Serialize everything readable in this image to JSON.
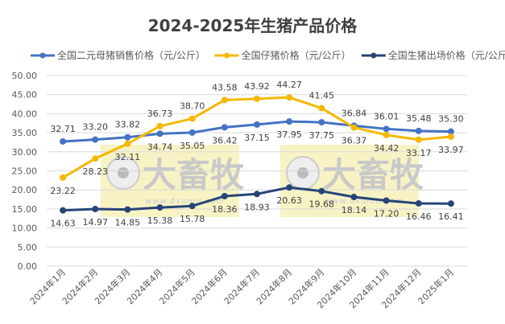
{
  "chart_data": {
    "type": "line",
    "title": "2024-2025年生猪产品价格",
    "xlabel": "",
    "ylabel": "",
    "categories": [
      "2024年1月",
      "2024年2月",
      "2024年3月",
      "2024年4月",
      "2024年5月",
      "2024年6月",
      "2024年7月",
      "2024年8月",
      "2024年9月",
      "2024年10月",
      "2024年11月",
      "2024年12月",
      "2025年1月"
    ],
    "ylim": [
      0,
      50
    ],
    "yticks": [
      "0.00",
      "5.00",
      "10.00",
      "15.00",
      "20.00",
      "25.00",
      "30.00",
      "35.00",
      "40.00",
      "45.00",
      "50.00"
    ],
    "grid": true,
    "legend_position": "top",
    "series": [
      {
        "name": "全国二元母猪销售价格（元/公斤）",
        "color": "#4472C4",
        "values": [
          32.71,
          33.2,
          33.82,
          34.74,
          35.05,
          36.42,
          37.15,
          37.95,
          37.75,
          36.84,
          36.01,
          35.48,
          35.3
        ]
      },
      {
        "name": "全国仔猪价格（元/公斤）",
        "color": "#F5B800",
        "values": [
          23.22,
          28.23,
          32.11,
          36.73,
          38.7,
          43.58,
          43.92,
          44.27,
          41.45,
          36.37,
          34.42,
          33.17,
          33.97
        ]
      },
      {
        "name": "全国生猪出场价格（元/公斤）",
        "color": "#264478",
        "values": [
          14.63,
          14.97,
          14.85,
          15.38,
          15.78,
          18.36,
          18.93,
          20.63,
          19.68,
          18.14,
          17.2,
          16.46,
          16.41
        ]
      }
    ]
  },
  "watermark": {
    "brand": "大畜牧",
    "site": "www.dxumu.com"
  }
}
